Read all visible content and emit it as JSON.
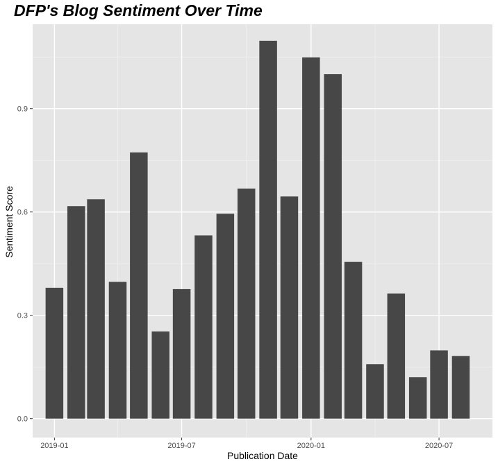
{
  "chart_data": {
    "type": "bar",
    "title": "DFP's Blog Sentiment Over Time",
    "xlabel": "Publication Date",
    "ylabel": "Sentiment Score",
    "x_ticks": [
      "2019-01",
      "2019-07",
      "2020-01",
      "2020-07"
    ],
    "y_ticks": [
      "0.0",
      "0.3",
      "0.6",
      "0.9"
    ],
    "ylim": [
      -0.055,
      1.145
    ],
    "xlim": [
      "2018-12-01",
      "2020-09-15"
    ],
    "grid": true,
    "bar_color": "#474747",
    "panel_color": "#e5e5e5",
    "series": [
      {
        "x": [
          "2019-01",
          "2019-02",
          "2019-03",
          "2019-04",
          "2019-05",
          "2019-06",
          "2019-07",
          "2019-08",
          "2019-09",
          "2019-10",
          "2019-11",
          "2019-12",
          "2020-01",
          "2020-02",
          "2020-03",
          "2020-04",
          "2020-05",
          "2020-06",
          "2020-07",
          "2020-08"
        ],
        "values": [
          0.38,
          0.617,
          0.637,
          0.397,
          0.773,
          0.253,
          0.376,
          0.532,
          0.595,
          0.668,
          1.097,
          0.645,
          1.049,
          1.0,
          0.455,
          0.158,
          0.363,
          0.12,
          0.198,
          0.182
        ]
      }
    ]
  }
}
